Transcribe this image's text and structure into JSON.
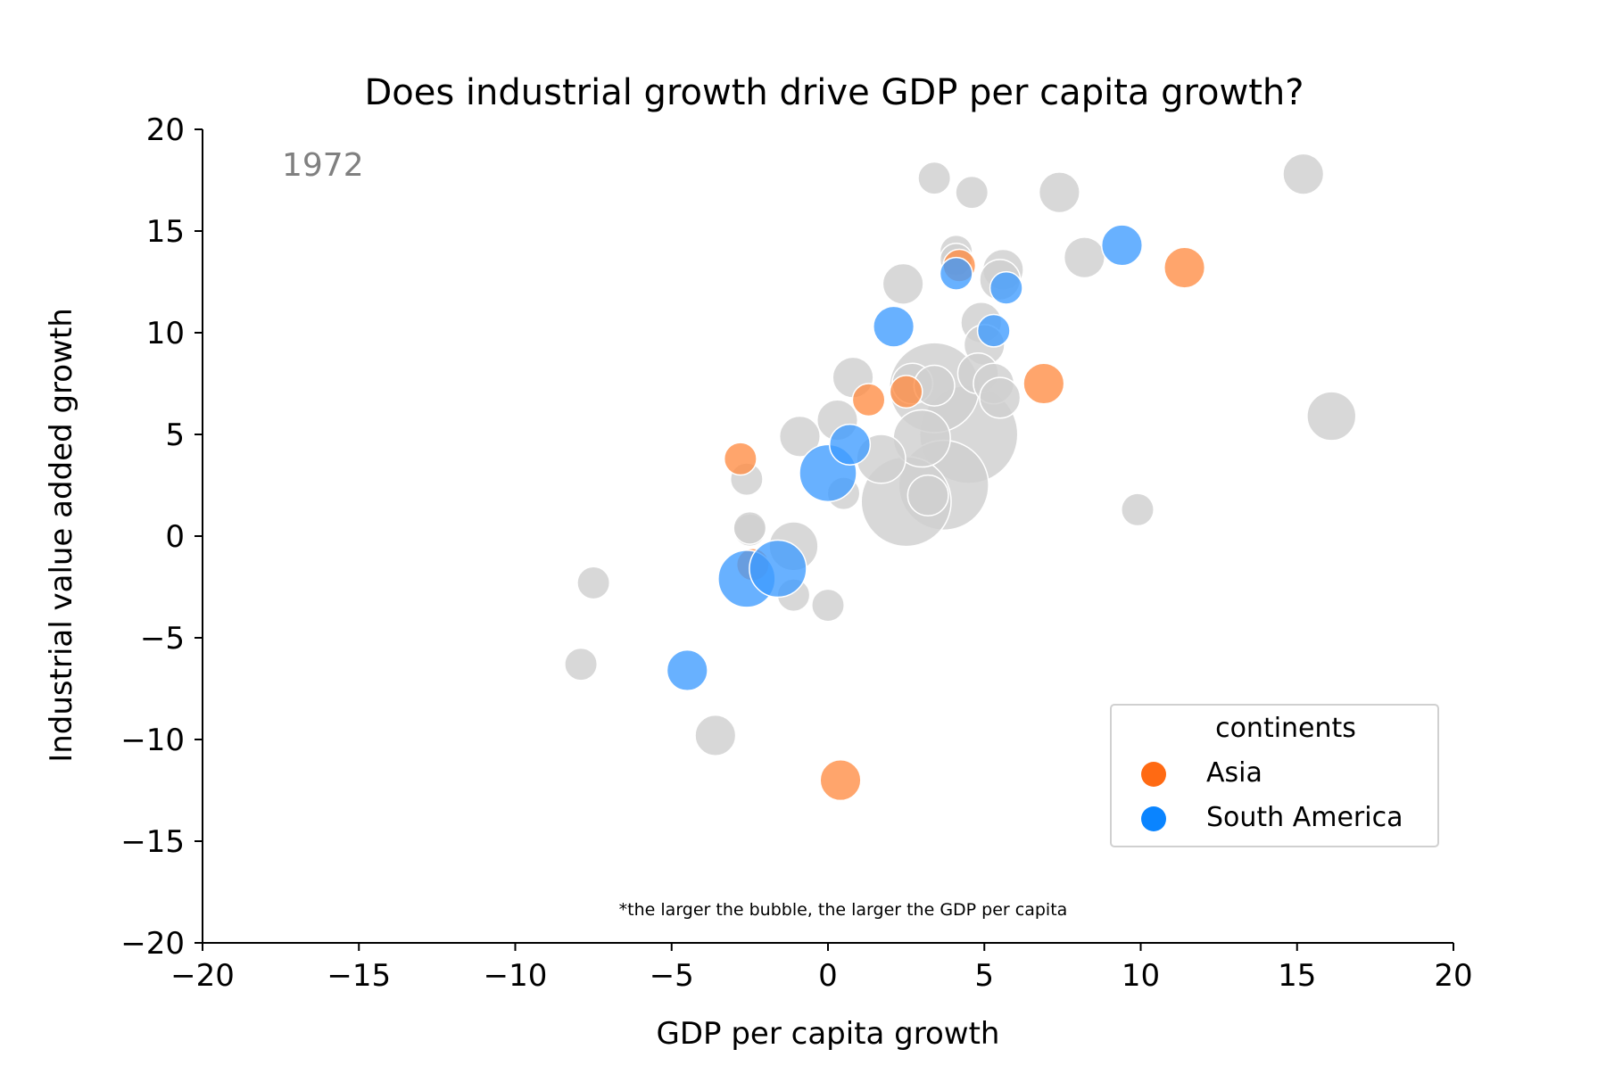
{
  "chart_data": {
    "type": "scatter",
    "title": "Does industrial growth drive GDP per capita growth?",
    "xlabel": "GDP per capita growth",
    "ylabel": "Industrial value added growth",
    "xlim": [
      -20,
      20
    ],
    "ylim": [
      -20,
      20
    ],
    "xticks": [
      -20,
      -15,
      -10,
      -5,
      0,
      5,
      10,
      15,
      20
    ],
    "yticks": [
      -20,
      -15,
      -10,
      -5,
      0,
      5,
      10,
      15,
      20
    ],
    "xtick_labels": [
      "−20",
      "−15",
      "−10",
      "−5",
      "0",
      "5",
      "10",
      "15",
      "20"
    ],
    "ytick_labels": [
      "−20",
      "−15",
      "−10",
      "−5",
      "0",
      "5",
      "10",
      "15",
      "20"
    ],
    "year_label": "1972",
    "note": "*the larger the bubble, the larger the GDP per capita",
    "grid": false,
    "legend": {
      "title": "continents",
      "placement": "lower-right",
      "entries": [
        {
          "label": "Asia",
          "color": "#ff6a13"
        },
        {
          "label": "South America",
          "color": "#0a84ff"
        }
      ]
    },
    "colors": {
      "Asia": "#ff8c42",
      "South America": "#3d9bff",
      "Other": "#d0d0d0"
    },
    "series": [
      {
        "name": "Asia",
        "points": [
          {
            "x": 11.4,
            "y": 13.2,
            "size": 3
          },
          {
            "x": 6.9,
            "y": 7.5,
            "size": 3
          },
          {
            "x": 2.5,
            "y": 7.1,
            "size": 2
          },
          {
            "x": 1.3,
            "y": 6.7,
            "size": 2
          },
          {
            "x": 4.2,
            "y": 13.3,
            "size": 2
          },
          {
            "x": -2.8,
            "y": 3.8,
            "size": 2
          },
          {
            "x": -2.4,
            "y": -1.4,
            "size": 2
          },
          {
            "x": 0.4,
            "y": -12.0,
            "size": 3
          }
        ]
      },
      {
        "name": "South America",
        "points": [
          {
            "x": 9.4,
            "y": 14.3,
            "size": 3
          },
          {
            "x": 4.1,
            "y": 12.9,
            "size": 2
          },
          {
            "x": 5.7,
            "y": 12.2,
            "size": 2
          },
          {
            "x": 2.1,
            "y": 10.3,
            "size": 3
          },
          {
            "x": 5.3,
            "y": 10.1,
            "size": 2
          },
          {
            "x": 0.7,
            "y": 4.5,
            "size": 3
          },
          {
            "x": 0.0,
            "y": 3.1,
            "size": 5
          },
          {
            "x": -2.6,
            "y": -2.1,
            "size": 5
          },
          {
            "x": -1.6,
            "y": -1.6,
            "size": 5
          },
          {
            "x": -4.5,
            "y": -6.6,
            "size": 3
          }
        ]
      },
      {
        "name": "",
        "points": [
          {
            "x": 15.2,
            "y": 17.8,
            "size": 3
          },
          {
            "x": 16.1,
            "y": 5.9,
            "size": 4
          },
          {
            "x": 9.9,
            "y": 1.3,
            "size": 2
          },
          {
            "x": 3.4,
            "y": 17.6,
            "size": 2
          },
          {
            "x": 4.6,
            "y": 16.9,
            "size": 2
          },
          {
            "x": 7.4,
            "y": 16.9,
            "size": 3
          },
          {
            "x": 8.2,
            "y": 13.7,
            "size": 3
          },
          {
            "x": 4.1,
            "y": 14.0,
            "size": 2
          },
          {
            "x": 4.1,
            "y": 13.6,
            "size": 2
          },
          {
            "x": 5.6,
            "y": 13.1,
            "size": 3
          },
          {
            "x": 5.5,
            "y": 12.6,
            "size": 3
          },
          {
            "x": 2.4,
            "y": 12.4,
            "size": 3
          },
          {
            "x": 4.9,
            "y": 10.5,
            "size": 3
          },
          {
            "x": 5.0,
            "y": 9.4,
            "size": 3
          },
          {
            "x": 4.8,
            "y": 8.0,
            "size": 3
          },
          {
            "x": 0.8,
            "y": 7.8,
            "size": 3
          },
          {
            "x": 2.7,
            "y": 7.5,
            "size": 3
          },
          {
            "x": 3.4,
            "y": 7.3,
            "size": 9
          },
          {
            "x": 3.4,
            "y": 7.4,
            "size": 3
          },
          {
            "x": 5.3,
            "y": 7.5,
            "size": 3
          },
          {
            "x": 5.5,
            "y": 6.8,
            "size": 3
          },
          {
            "x": 4.5,
            "y": 5.0,
            "size": 10
          },
          {
            "x": 3.0,
            "y": 4.8,
            "size": 5
          },
          {
            "x": 0.3,
            "y": 5.7,
            "size": 3
          },
          {
            "x": -0.9,
            "y": 4.9,
            "size": 3
          },
          {
            "x": 1.7,
            "y": 3.8,
            "size": 4
          },
          {
            "x": 3.7,
            "y": 2.5,
            "size": 9
          },
          {
            "x": 2.5,
            "y": 1.7,
            "size": 9
          },
          {
            "x": 3.2,
            "y": 2.0,
            "size": 3
          },
          {
            "x": 0.5,
            "y": 2.1,
            "size": 2
          },
          {
            "x": -2.6,
            "y": 2.8,
            "size": 2
          },
          {
            "x": -2.5,
            "y": 0.3,
            "size": 2
          },
          {
            "x": -2.5,
            "y": 0.4,
            "size": 2
          },
          {
            "x": -1.1,
            "y": -0.5,
            "size": 4
          },
          {
            "x": -1.1,
            "y": -2.9,
            "size": 2
          },
          {
            "x": 0.0,
            "y": -3.4,
            "size": 2
          },
          {
            "x": -7.5,
            "y": -2.3,
            "size": 2
          },
          {
            "x": -7.9,
            "y": -6.3,
            "size": 2
          },
          {
            "x": -3.6,
            "y": -9.8,
            "size": 3
          }
        ]
      }
    ]
  }
}
